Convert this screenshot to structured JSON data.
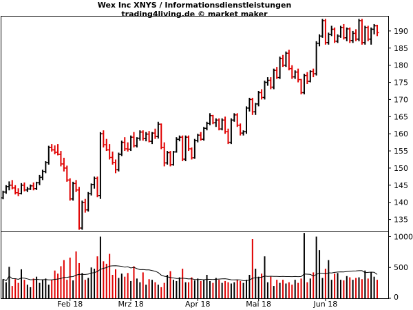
{
  "chart_data": {
    "type": "ohlc-bar",
    "title": "Wex Inc XNYS / Informationsdienstleistungen",
    "subtitle": "trading4living.de © market maker",
    "price_axis": {
      "ylim": [
        131.5,
        194.2
      ],
      "ticks": [
        135,
        140,
        145,
        150,
        155,
        160,
        165,
        170,
        175,
        180,
        185,
        190
      ]
    },
    "volume_axis": {
      "ylim": [
        0,
        1050
      ],
      "ticks": [
        0,
        500,
        1000
      ]
    },
    "x_labels": [
      {
        "label": "Feb 18",
        "index": 22
      },
      {
        "label": "Mrz 18",
        "index": 42
      },
      {
        "label": "Apr 18",
        "index": 64
      },
      {
        "label": "Mai 18",
        "index": 84
      },
      {
        "label": "Jun 18",
        "index": 106
      }
    ],
    "colors": {
      "up": "#000000",
      "down": "#e00000",
      "axis": "#000000",
      "avg": "#000000"
    },
    "bars": [
      [
        141.3,
        143.4,
        140.9,
        143.0,
        310
      ],
      [
        143.0,
        145.0,
        142.5,
        144.6,
        260
      ],
      [
        144.6,
        146.1,
        143.5,
        145.0,
        510
      ],
      [
        145.0,
        146.5,
        143.8,
        144.2,
        200
      ],
      [
        144.2,
        145.0,
        142.3,
        142.8,
        310
      ],
      [
        142.8,
        144.1,
        141.8,
        142.6,
        250
      ],
      [
        142.6,
        145.6,
        142.3,
        145.0,
        470
      ],
      [
        145.0,
        145.8,
        143.2,
        143.6,
        300
      ],
      [
        143.6,
        144.5,
        143.0,
        143.9,
        220
      ],
      [
        143.9,
        145.2,
        143.6,
        144.8,
        180
      ],
      [
        144.8,
        145.8,
        143.5,
        144.0,
        320
      ],
      [
        144.0,
        146.0,
        143.6,
        145.7,
        350
      ],
      [
        145.7,
        148.0,
        145.0,
        147.3,
        250
      ],
      [
        147.3,
        149.5,
        146.5,
        149.0,
        300
      ],
      [
        149.0,
        152.0,
        148.5,
        151.6,
        320
      ],
      [
        151.6,
        156.5,
        151.0,
        156.0,
        220
      ],
      [
        156.0,
        157.0,
        154.8,
        155.3,
        300
      ],
      [
        155.3,
        156.6,
        154.0,
        154.6,
        450
      ],
      [
        154.6,
        157.0,
        153.7,
        154.0,
        400
      ],
      [
        154.0,
        155.0,
        150.5,
        151.2,
        520
      ],
      [
        151.2,
        153.0,
        149.0,
        150.0,
        620
      ],
      [
        150.0,
        150.7,
        146.0,
        146.5,
        300
      ],
      [
        146.5,
        147.0,
        140.5,
        141.0,
        660
      ],
      [
        141.0,
        146.0,
        140.5,
        145.5,
        290
      ],
      [
        145.5,
        146.5,
        143.0,
        143.6,
        760
      ],
      [
        143.6,
        144.5,
        132.0,
        132.5,
        570
      ],
      [
        132.5,
        140.5,
        132.0,
        140.0,
        410
      ],
      [
        140.0,
        141.0,
        137.0,
        137.8,
        300
      ],
      [
        137.8,
        143.0,
        137.3,
        142.5,
        330
      ],
      [
        142.5,
        145.5,
        142.0,
        145.2,
        500
      ],
      [
        145.2,
        147.5,
        144.0,
        147.0,
        480
      ],
      [
        147.0,
        147.5,
        141.5,
        142.0,
        680
      ],
      [
        142.0,
        160.5,
        141.0,
        160.0,
        1000
      ],
      [
        160.0,
        161.0,
        156.0,
        156.8,
        600
      ],
      [
        156.8,
        158.5,
        155.0,
        155.3,
        560
      ],
      [
        155.3,
        157.0,
        152.5,
        153.1,
        720
      ],
      [
        153.1,
        154.8,
        151.0,
        151.6,
        380
      ],
      [
        151.6,
        152.5,
        148.5,
        149.5,
        470
      ],
      [
        149.5,
        154.5,
        149.0,
        154.0,
        330
      ],
      [
        154.0,
        158.0,
        153.5,
        157.5,
        400
      ],
      [
        157.5,
        159.0,
        155.0,
        155.6,
        350
      ],
      [
        155.6,
        157.5,
        154.8,
        155.5,
        410
      ],
      [
        155.5,
        159.5,
        155.0,
        159.0,
        280
      ],
      [
        159.0,
        160.5,
        156.0,
        156.5,
        520
      ],
      [
        156.5,
        159.0,
        156.0,
        158.7,
        320
      ],
      [
        158.7,
        161.0,
        158.0,
        160.5,
        260
      ],
      [
        160.5,
        161.0,
        158.0,
        158.6,
        420
      ],
      [
        158.6,
        160.5,
        157.8,
        159.9,
        220
      ],
      [
        159.9,
        160.8,
        157.5,
        157.8,
        310
      ],
      [
        157.8,
        160.5,
        157.0,
        160.2,
        300
      ],
      [
        160.2,
        161.5,
        158.5,
        159.2,
        260
      ],
      [
        159.2,
        163.5,
        158.6,
        162.8,
        220
      ],
      [
        162.8,
        163.0,
        155.5,
        156.0,
        180
      ],
      [
        156.0,
        157.5,
        150.5,
        151.5,
        250
      ],
      [
        151.5,
        155.0,
        151.0,
        154.5,
        380
      ],
      [
        154.5,
        155.0,
        150.5,
        151.0,
        440
      ],
      [
        151.0,
        155.0,
        150.7,
        154.7,
        300
      ],
      [
        154.7,
        159.0,
        154.5,
        158.4,
        280
      ],
      [
        158.4,
        159.5,
        157.8,
        159.0,
        340
      ],
      [
        159.0,
        159.5,
        152.0,
        152.6,
        480
      ],
      [
        152.6,
        159.5,
        152.0,
        159.0,
        260
      ],
      [
        159.0,
        159.5,
        155.0,
        155.6,
        260
      ],
      [
        155.6,
        156.0,
        152.5,
        153.0,
        340
      ],
      [
        153.0,
        158.5,
        152.7,
        158.0,
        290
      ],
      [
        158.0,
        160.0,
        157.5,
        159.6,
        320
      ],
      [
        159.6,
        160.5,
        158.0,
        158.4,
        280
      ],
      [
        158.4,
        162.0,
        158.0,
        161.6,
        300
      ],
      [
        161.6,
        163.5,
        161.0,
        163.0,
        380
      ],
      [
        163.0,
        166.0,
        162.5,
        165.3,
        280
      ],
      [
        165.3,
        165.5,
        162.8,
        163.2,
        250
      ],
      [
        163.2,
        164.5,
        162.0,
        164.0,
        330
      ],
      [
        164.0,
        164.5,
        161.0,
        161.4,
        300
      ],
      [
        161.4,
        164.5,
        161.0,
        164.0,
        250
      ],
      [
        164.0,
        165.0,
        160.0,
        160.6,
        280
      ],
      [
        160.6,
        161.5,
        157.0,
        157.5,
        260
      ],
      [
        157.5,
        164.5,
        157.0,
        164.0,
        240
      ],
      [
        164.0,
        166.0,
        163.5,
        165.5,
        260
      ],
      [
        165.5,
        166.0,
        162.0,
        162.5,
        300
      ],
      [
        162.5,
        163.0,
        159.5,
        160.2,
        280
      ],
      [
        160.2,
        161.0,
        159.5,
        160.6,
        250
      ],
      [
        160.6,
        168.0,
        160.0,
        167.5,
        300
      ],
      [
        167.5,
        170.5,
        166.5,
        170.0,
        380
      ],
      [
        170.0,
        170.5,
        165.5,
        166.4,
        960
      ],
      [
        166.4,
        169.0,
        165.5,
        168.7,
        480
      ],
      [
        168.7,
        172.5,
        168.0,
        172.0,
        350
      ],
      [
        172.0,
        173.0,
        170.0,
        170.6,
        400
      ],
      [
        170.6,
        175.5,
        170.0,
        175.0,
        680
      ],
      [
        175.0,
        176.5,
        174.0,
        175.6,
        260
      ],
      [
        175.6,
        176.5,
        173.0,
        173.6,
        350
      ],
      [
        173.6,
        179.0,
        173.0,
        178.5,
        200
      ],
      [
        178.5,
        179.5,
        176.0,
        176.4,
        300
      ],
      [
        176.4,
        182.5,
        176.0,
        182.0,
        250
      ],
      [
        182.0,
        183.0,
        179.5,
        180.0,
        300
      ],
      [
        180.0,
        184.0,
        179.5,
        183.5,
        240
      ],
      [
        183.5,
        184.5,
        178.5,
        179.0,
        260
      ],
      [
        179.0,
        180.0,
        176.0,
        176.6,
        220
      ],
      [
        176.6,
        178.5,
        176.0,
        178.0,
        300
      ],
      [
        178.0,
        179.0,
        175.0,
        175.8,
        250
      ],
      [
        175.8,
        176.0,
        171.5,
        172.0,
        320
      ],
      [
        172.0,
        177.5,
        171.5,
        177.0,
        1060
      ],
      [
        177.0,
        178.0,
        174.5,
        175.3,
        260
      ],
      [
        175.3,
        178.5,
        175.0,
        178.2,
        320
      ],
      [
        178.2,
        179.0,
        176.5,
        177.5,
        420
      ],
      [
        177.5,
        187.0,
        177.0,
        186.4,
        1000
      ],
      [
        186.4,
        189.0,
        185.5,
        188.5,
        780
      ],
      [
        188.5,
        193.5,
        188.0,
        193.0,
        330
      ],
      [
        193.0,
        193.5,
        186.0,
        186.6,
        480
      ],
      [
        186.6,
        189.5,
        186.0,
        189.0,
        620
      ],
      [
        189.0,
        191.5,
        188.5,
        190.5,
        300
      ],
      [
        190.5,
        191.0,
        186.5,
        187.0,
        400
      ],
      [
        187.0,
        189.0,
        186.5,
        188.5,
        410
      ],
      [
        188.5,
        191.5,
        188.0,
        191.0,
        300
      ],
      [
        191.0,
        192.0,
        187.5,
        188.0,
        290
      ],
      [
        188.0,
        191.0,
        187.0,
        190.6,
        360
      ],
      [
        190.6,
        191.0,
        186.5,
        187.2,
        340
      ],
      [
        187.2,
        190.0,
        186.5,
        189.3,
        300
      ],
      [
        189.3,
        190.5,
        187.0,
        187.6,
        330
      ],
      [
        187.6,
        193.5,
        187.0,
        193.0,
        340
      ],
      [
        193.0,
        193.5,
        186.0,
        186.6,
        310
      ],
      [
        186.6,
        191.5,
        186.0,
        191.0,
        450
      ],
      [
        191.0,
        191.5,
        187.0,
        187.6,
        320
      ],
      [
        187.6,
        191.0,
        186.0,
        190.5,
        420
      ],
      [
        190.5,
        192.0,
        189.0,
        191.5,
        350
      ],
      [
        191.5,
        191.8,
        188.5,
        189.5,
        300
      ]
    ]
  }
}
